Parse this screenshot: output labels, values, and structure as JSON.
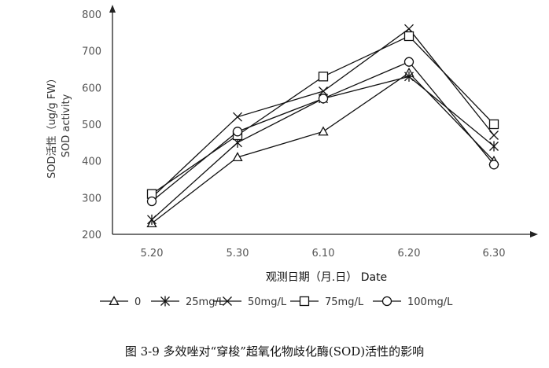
{
  "chart_data": {
    "type": "line",
    "categories": [
      "5.20",
      "5.30",
      "6.10",
      "6.20",
      "6.30"
    ],
    "ylim": [
      200,
      800
    ],
    "yticks": [
      200,
      300,
      400,
      500,
      600,
      700,
      800
    ],
    "ylabel_lines": [
      "SOD活性（ug/g FW）",
      "SOD activity"
    ],
    "xlabel": "观测日期（月.日）  Date",
    "grid": false,
    "legend_position": "bottom",
    "series": [
      {
        "name": "0",
        "marker": "triangle",
        "values": [
          230,
          410,
          480,
          640,
          400
        ]
      },
      {
        "name": "25mg/L",
        "marker": "asterisk",
        "values": [
          240,
          450,
          570,
          630,
          440
        ]
      },
      {
        "name": "50mg/L",
        "marker": "x",
        "values": [
          300,
          520,
          590,
          760,
          470
        ]
      },
      {
        "name": "75mg/L",
        "marker": "square",
        "values": [
          310,
          470,
          630,
          740,
          500
        ]
      },
      {
        "name": "100mg/L",
        "marker": "circle",
        "values": [
          290,
          480,
          570,
          670,
          390
        ]
      }
    ]
  },
  "caption": "图 3-9  多效唑对“穿梭”超氧化物歧化酶(SOD)活性的影响"
}
